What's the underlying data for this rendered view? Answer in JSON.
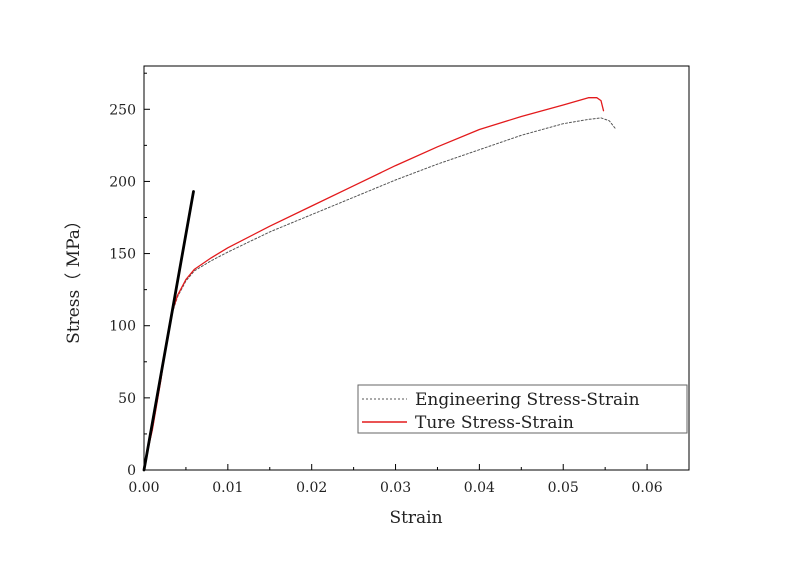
{
  "chart_data": {
    "type": "line",
    "title": "",
    "xlabel": "Strain",
    "ylabel": "Stress（ MPa）",
    "xlim": [
      0,
      0.065
    ],
    "ylim": [
      0,
      280
    ],
    "x_ticks": [
      0,
      0.01,
      0.02,
      0.03,
      0.04,
      0.05,
      0.06
    ],
    "x_tick_labels": [
      "0.00",
      "0.01",
      "0.02",
      "0.03",
      "0.04",
      "0.05",
      "0.06"
    ],
    "y_ticks": [
      0,
      50,
      100,
      150,
      200,
      250
    ],
    "y_tick_labels": [
      "0",
      "50",
      "100",
      "150",
      "200",
      "250"
    ],
    "grid": false,
    "legend_position": "bottom-right",
    "series": [
      {
        "name": "Engineering Stress-Strain",
        "color": "#555555",
        "style": "dotted",
        "points": [
          [
            0,
            0
          ],
          [
            0.0005,
            15
          ],
          [
            0.001,
            28
          ],
          [
            0.0015,
            45
          ],
          [
            0.002,
            62
          ],
          [
            0.0025,
            82
          ],
          [
            0.003,
            100
          ],
          [
            0.0035,
            111
          ],
          [
            0.004,
            120
          ],
          [
            0.005,
            131
          ],
          [
            0.006,
            138
          ],
          [
            0.008,
            145
          ],
          [
            0.01,
            151
          ],
          [
            0.015,
            165
          ],
          [
            0.02,
            177
          ],
          [
            0.025,
            189
          ],
          [
            0.03,
            201
          ],
          [
            0.035,
            212
          ],
          [
            0.04,
            222
          ],
          [
            0.045,
            232
          ],
          [
            0.05,
            240
          ],
          [
            0.053,
            243
          ],
          [
            0.0545,
            244
          ],
          [
            0.0555,
            242
          ],
          [
            0.0563,
            236
          ]
        ]
      },
      {
        "name": "Ture Stress-Strain",
        "color": "#e31a1c",
        "style": "solid",
        "points": [
          [
            0,
            0
          ],
          [
            0.0005,
            15
          ],
          [
            0.001,
            28
          ],
          [
            0.0015,
            45
          ],
          [
            0.002,
            62
          ],
          [
            0.0025,
            82
          ],
          [
            0.003,
            100
          ],
          [
            0.0035,
            112
          ],
          [
            0.004,
            121
          ],
          [
            0.005,
            132
          ],
          [
            0.006,
            139
          ],
          [
            0.008,
            147
          ],
          [
            0.01,
            154
          ],
          [
            0.015,
            169
          ],
          [
            0.02,
            183
          ],
          [
            0.025,
            197
          ],
          [
            0.03,
            211
          ],
          [
            0.035,
            224
          ],
          [
            0.04,
            236
          ],
          [
            0.045,
            245
          ],
          [
            0.05,
            253
          ],
          [
            0.053,
            258
          ],
          [
            0.054,
            258
          ],
          [
            0.0545,
            256
          ],
          [
            0.0548,
            249
          ]
        ]
      },
      {
        "name": "",
        "color": "#000000",
        "style": "solid-thick",
        "points": [
          [
            0,
            0
          ],
          [
            0.0059,
            193
          ]
        ]
      }
    ]
  }
}
